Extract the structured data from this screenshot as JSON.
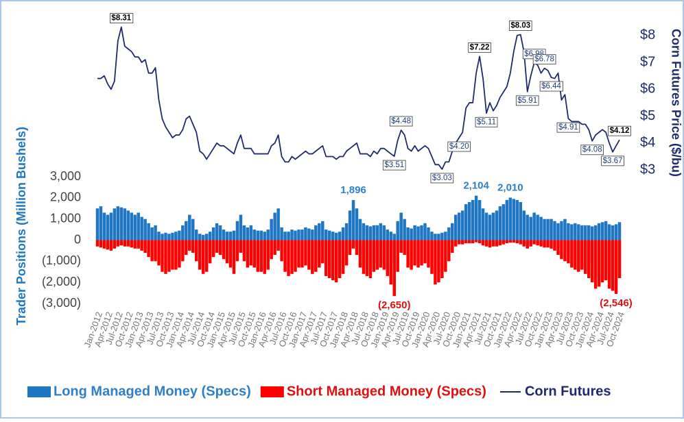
{
  "chart_data": {
    "type": "bar",
    "ylabel": "Trader Positions (Million Bushels)",
    "y2label": "Corn Futures Price ($/bu)",
    "categories": [
      "Jan-2012",
      null,
      null,
      "Apr-2012",
      null,
      null,
      "Jul-2012",
      null,
      null,
      "Oct-2012",
      null,
      null,
      "Jan-2013",
      null,
      null,
      "Apr-2013",
      null,
      null,
      "Jul-2013",
      null,
      null,
      "Oct-2013",
      null,
      null,
      "Jan-2014",
      null,
      null,
      "Apr-2014",
      null,
      null,
      "Jul-2014",
      null,
      null,
      "Oct-2014",
      null,
      null,
      "Jan-2015",
      null,
      null,
      "Apr-2015",
      null,
      null,
      "Jul-2015",
      null,
      null,
      "Oct-2015",
      null,
      null,
      "Jan-2016",
      null,
      null,
      "Apr-2016",
      null,
      null,
      "Jul-2016",
      null,
      null,
      "Oct-2016",
      null,
      null,
      "Jan-2017",
      null,
      null,
      "Apr-2017",
      null,
      null,
      "Jul-2017",
      null,
      null,
      "Oct-2017",
      null,
      null,
      "Jan-2018",
      null,
      null,
      "Apr-2018",
      null,
      null,
      "Jul-2018",
      null,
      null,
      "Oct-2018",
      null,
      null,
      "Jan-2019",
      null,
      null,
      "Apr-2019",
      null,
      null,
      "Jul-2019",
      null,
      null,
      "Oct-2019",
      null,
      null,
      "Jan-2020",
      null,
      null,
      "Apr-2020",
      null,
      null,
      "Jul-2020",
      null,
      null,
      "Oct-2020",
      null,
      null,
      "Jan-2021",
      null,
      null,
      "Apr-2021",
      null,
      null,
      "Jul-2021",
      null,
      null,
      "Oct-2021",
      null,
      null,
      "Jan-2022",
      null,
      null,
      "Apr-2022",
      null,
      null,
      "Jul-2022",
      null,
      null,
      "Oct-2022",
      null,
      null,
      "Jan-2023",
      null,
      null,
      "Apr-2023",
      null,
      null,
      "Jul-2023",
      null,
      null,
      "Oct-2023",
      null,
      null,
      "Jan-2024",
      null,
      null,
      "Apr-2024",
      null,
      null,
      "Jul-2024",
      null,
      null,
      "Oct-2024"
    ],
    "series": [
      {
        "name": "Long Managed Money (Specs)",
        "color": "#1f77c4",
        "type": "bar",
        "axis": "y",
        "values": [
          1500,
          1600,
          1300,
          1200,
          1300,
          1500,
          1600,
          1550,
          1500,
          1400,
          1300,
          1200,
          1300,
          1100,
          1000,
          800,
          600,
          700,
          400,
          300,
          350,
          300,
          350,
          400,
          450,
          700,
          900,
          1200,
          1000,
          500,
          300,
          250,
          300,
          400,
          600,
          800,
          700,
          500,
          400,
          400,
          450,
          900,
          1200,
          700,
          600,
          700,
          500,
          450,
          450,
          400,
          500,
          1000,
          1300,
          1500,
          600,
          400,
          400,
          500,
          450,
          500,
          500,
          600,
          550,
          500,
          700,
          800,
          900,
          500,
          450,
          400,
          350,
          400,
          600,
          800,
          1400,
          1896,
          1500,
          1000,
          800,
          700,
          650,
          700,
          700,
          800,
          700,
          500,
          400,
          300,
          900,
          1300,
          1000,
          600,
          550,
          700,
          650,
          700,
          800,
          600,
          400,
          300,
          300,
          350,
          400,
          600,
          800,
          1200,
          1300,
          1400,
          1700,
          1800,
          1900,
          2104,
          1900,
          1500,
          1300,
          1200,
          1300,
          1400,
          1600,
          1700,
          1900,
          2010,
          1950,
          1900,
          1800,
          1400,
          1200,
          1100,
          1300,
          1200,
          1100,
          1000,
          1000,
          1000,
          900,
          800,
          900,
          1000,
          800,
          750,
          800,
          750,
          700,
          700,
          700,
          650,
          700,
          800,
          850,
          900,
          750,
          700,
          750,
          850
        ],
        "value_labels": [
          null,
          null,
          null,
          null,
          null,
          null,
          null,
          null,
          null,
          null,
          null,
          null,
          null,
          null,
          null,
          null,
          null,
          null,
          null,
          null,
          null,
          null,
          null,
          null,
          null,
          null,
          null,
          null,
          null,
          null,
          null,
          null,
          null,
          null,
          null,
          null,
          null,
          null,
          null,
          null,
          null,
          null,
          null,
          null,
          null,
          null,
          null,
          null,
          null,
          null,
          null,
          null,
          null,
          null,
          null,
          null,
          null,
          null,
          null,
          null,
          null,
          null,
          null,
          null,
          null,
          null,
          null,
          null,
          null,
          null,
          null,
          null,
          null,
          null,
          null,
          "1,896",
          null,
          null,
          null,
          null,
          null,
          null,
          null,
          null,
          null,
          null,
          null,
          null,
          null,
          null,
          null,
          null,
          null,
          null,
          null,
          null,
          null,
          null,
          null,
          null,
          null,
          null,
          null,
          null,
          null,
          null,
          null,
          null,
          null,
          null,
          null,
          "2,104",
          null,
          null,
          null,
          null,
          null,
          null,
          null,
          null,
          null,
          "2,010",
          null,
          null,
          null,
          null,
          null,
          null,
          null,
          null,
          null,
          null,
          null,
          null,
          null,
          null,
          null,
          null,
          null,
          null,
          null,
          null,
          null,
          null,
          null,
          null,
          null,
          null,
          null,
          null,
          null,
          null,
          null,
          null
        ]
      },
      {
        "name": "Short Managed Money (Specs)",
        "color": "#ff0000",
        "type": "bar",
        "axis": "y",
        "values": [
          -300,
          -350,
          -400,
          -450,
          -500,
          -400,
          -300,
          -250,
          -300,
          -300,
          -350,
          -400,
          -400,
          -500,
          -600,
          -800,
          -1000,
          -1000,
          -1200,
          -1500,
          -1600,
          -1500,
          -1400,
          -1400,
          -1300,
          -1000,
          -700,
          -500,
          -600,
          -1000,
          -1400,
          -1600,
          -1500,
          -1100,
          -800,
          -600,
          -700,
          -900,
          -1100,
          -1300,
          -1600,
          -1000,
          -600,
          -1000,
          -1300,
          -1200,
          -1300,
          -1500,
          -1500,
          -1600,
          -1400,
          -900,
          -700,
          -500,
          -1000,
          -1500,
          -1700,
          -1600,
          -1500,
          -1300,
          -1300,
          -1200,
          -1400,
          -1600,
          -1500,
          -1300,
          -1100,
          -1700,
          -1800,
          -1900,
          -2000,
          -1800,
          -1600,
          -1200,
          -700,
          -400,
          -700,
          -1300,
          -1600,
          -1700,
          -1800,
          -1500,
          -1400,
          -1300,
          -1400,
          -1700,
          -2100,
          -2650,
          -1500,
          -600,
          -700,
          -1300,
          -1400,
          -1200,
          -1300,
          -1200,
          -1100,
          -1300,
          -1600,
          -2100,
          -2000,
          -1800,
          -1500,
          -1000,
          -600,
          -300,
          -200,
          -200,
          -150,
          -150,
          -150,
          -100,
          -150,
          -250,
          -300,
          -350,
          -300,
          -300,
          -250,
          -200,
          -150,
          -120,
          -120,
          -150,
          -200,
          -300,
          -400,
          -300,
          -200,
          -250,
          -300,
          -350,
          -350,
          -400,
          -500,
          -700,
          -900,
          -1000,
          -1100,
          -1300,
          -1400,
          -1500,
          -1400,
          -1600,
          -1800,
          -2000,
          -2300,
          -2200,
          -2000,
          -1900,
          -2300,
          -2400,
          -2546,
          -1800
        ],
        "value_labels": [
          null,
          null,
          null,
          null,
          null,
          null,
          null,
          null,
          null,
          null,
          null,
          null,
          null,
          null,
          null,
          null,
          null,
          null,
          null,
          null,
          null,
          null,
          null,
          null,
          null,
          null,
          null,
          null,
          null,
          null,
          null,
          null,
          null,
          null,
          null,
          null,
          null,
          null,
          null,
          null,
          null,
          null,
          null,
          null,
          null,
          null,
          null,
          null,
          null,
          null,
          null,
          null,
          null,
          null,
          null,
          null,
          null,
          null,
          null,
          null,
          null,
          null,
          null,
          null,
          null,
          null,
          null,
          null,
          null,
          null,
          null,
          null,
          null,
          null,
          null,
          null,
          null,
          null,
          null,
          null,
          null,
          null,
          null,
          null,
          null,
          null,
          null,
          "(2,650)",
          null,
          null,
          null,
          null,
          null,
          null,
          null,
          null,
          null,
          null,
          null,
          null,
          null,
          null,
          null,
          null,
          null,
          null,
          null,
          null,
          null,
          null,
          null,
          null,
          null,
          null,
          null,
          null,
          null,
          null,
          null,
          null,
          null,
          null,
          null,
          null,
          null,
          null,
          null,
          null,
          null,
          null,
          null,
          null,
          null,
          null,
          null,
          null,
          null,
          null,
          null,
          null,
          null,
          null,
          null,
          null,
          null,
          null,
          null,
          null,
          null,
          null,
          null,
          null,
          "(2,546)",
          null
        ]
      },
      {
        "name": "Corn Futures",
        "color": "#1f2a6e",
        "type": "line",
        "axis": "y2",
        "values": [
          6.4,
          6.4,
          6.5,
          6.2,
          6.0,
          6.3,
          7.8,
          8.31,
          7.6,
          7.5,
          7.4,
          7.2,
          7.2,
          7.0,
          7.1,
          6.6,
          6.6,
          6.8,
          5.6,
          4.9,
          4.6,
          4.4,
          4.2,
          4.3,
          4.3,
          4.5,
          4.9,
          5.0,
          4.7,
          4.4,
          3.7,
          3.6,
          3.4,
          3.6,
          3.8,
          4.0,
          3.9,
          3.9,
          3.8,
          3.7,
          3.6,
          4.0,
          4.3,
          3.8,
          3.8,
          3.8,
          3.6,
          3.6,
          3.6,
          3.6,
          3.6,
          3.9,
          4.0,
          4.3,
          3.5,
          3.3,
          3.3,
          3.5,
          3.4,
          3.5,
          3.6,
          3.7,
          3.6,
          3.6,
          3.7,
          3.8,
          3.9,
          3.5,
          3.5,
          3.5,
          3.4,
          3.5,
          3.5,
          3.7,
          3.8,
          3.9,
          4.0,
          3.6,
          3.6,
          3.6,
          3.5,
          3.7,
          3.6,
          3.8,
          3.8,
          3.7,
          3.6,
          3.51,
          4.1,
          4.48,
          4.3,
          3.8,
          3.7,
          3.9,
          3.7,
          3.8,
          3.9,
          3.8,
          3.5,
          3.2,
          3.2,
          3.03,
          3.3,
          3.3,
          3.7,
          4.0,
          4.2,
          4.4,
          5.3,
          5.5,
          5.5,
          6.6,
          7.22,
          6.4,
          5.11,
          5.5,
          5.2,
          5.4,
          5.7,
          5.9,
          6.1,
          6.6,
          7.4,
          8.0,
          8.03,
          7.4,
          5.91,
          6.5,
          6.98,
          6.9,
          6.6,
          6.78,
          6.7,
          6.44,
          6.4,
          6.6,
          5.6,
          5.8,
          4.91,
          4.8,
          4.8,
          4.8,
          4.7,
          4.7,
          4.5,
          4.08,
          4.3,
          4.4,
          4.5,
          4.4,
          4.0,
          3.67,
          3.9,
          4.12
        ],
        "value_labels": [
          null,
          null,
          null,
          null,
          null,
          null,
          null,
          "$8.31",
          null,
          null,
          null,
          null,
          null,
          null,
          null,
          null,
          null,
          null,
          null,
          null,
          null,
          null,
          null,
          null,
          null,
          null,
          null,
          null,
          null,
          null,
          null,
          null,
          null,
          null,
          null,
          null,
          null,
          null,
          null,
          null,
          null,
          null,
          null,
          null,
          null,
          null,
          null,
          null,
          null,
          null,
          null,
          null,
          null,
          null,
          null,
          null,
          null,
          null,
          null,
          null,
          null,
          null,
          null,
          null,
          null,
          null,
          null,
          null,
          null,
          null,
          null,
          null,
          null,
          null,
          null,
          null,
          null,
          null,
          null,
          null,
          null,
          null,
          null,
          null,
          null,
          null,
          null,
          "$3.51",
          null,
          "$4.48",
          null,
          null,
          null,
          null,
          null,
          null,
          null,
          null,
          null,
          null,
          null,
          "$3.03",
          null,
          null,
          null,
          null,
          "$4.20",
          null,
          null,
          null,
          null,
          null,
          "$7.22",
          null,
          "$5.11",
          null,
          null,
          null,
          null,
          null,
          null,
          null,
          null,
          null,
          "$8.03",
          null,
          "$5.91",
          null,
          "$6.98",
          null,
          null,
          "$6.78",
          null,
          "$6.44",
          null,
          null,
          null,
          null,
          "$4.91",
          null,
          null,
          null,
          null,
          null,
          null,
          "$4.08",
          null,
          null,
          null,
          null,
          null,
          "$3.67",
          null,
          "$4.12"
        ]
      }
    ],
    "ylim": [
      -3000,
      3000
    ],
    "yticks": [
      {
        "value": 3000,
        "label": "3,000"
      },
      {
        "value": 2000,
        "label": "2,000"
      },
      {
        "value": 1000,
        "label": "1,000"
      },
      0,
      {
        "value": -1000,
        "label": "(1,000)"
      },
      {
        "value": -2000,
        "label": "(2,000)"
      },
      {
        "value": -3000,
        "label": "(3,000)"
      }
    ],
    "y2lim": [
      2.8,
      8.4
    ],
    "y2ticks": [
      {
        "value": 3,
        "label": "$3"
      },
      {
        "value": 4,
        "label": "$4"
      },
      {
        "value": 5,
        "label": "$5"
      },
      {
        "value": 6,
        "label": "$6"
      },
      {
        "value": 7,
        "label": "$7"
      },
      {
        "value": 8,
        "label": "$8"
      }
    ],
    "grid": false,
    "legend": "bottom"
  }
}
